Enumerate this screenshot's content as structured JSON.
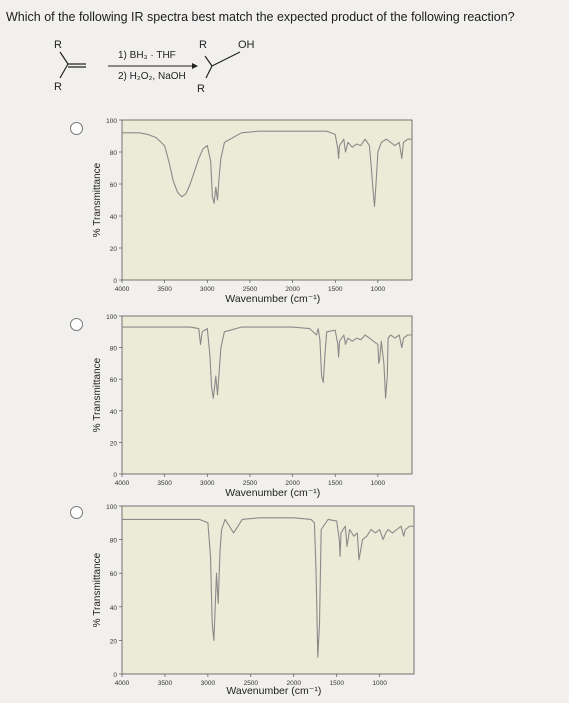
{
  "question": {
    "text": "Which of the following IR spectra best match the expected product of the following reaction?"
  },
  "reaction": {
    "reactant_labels": [
      "R",
      "R"
    ],
    "reagent_line1": "1) BH₃ · THF",
    "reagent_line2": "2) H₂O₂, NaOH",
    "product_labels": [
      "R",
      "OH",
      "R"
    ]
  },
  "options": [
    {
      "id": "A",
      "ylabel": "% Transmittance",
      "xlabel": "Wavenumber (cm⁻¹)",
      "yticks": [
        "0",
        "20",
        "40",
        "60",
        "80",
        "100"
      ],
      "xticks": [
        "4000",
        "3500",
        "3000",
        "2500",
        "2000",
        "1500",
        "1000"
      ]
    },
    {
      "id": "B",
      "ylabel": "% Transmittance",
      "xlabel": "Wavenumber (cm⁻¹)",
      "yticks": [
        "0",
        "20",
        "40",
        "60",
        "80",
        "100"
      ],
      "xticks": [
        "4000",
        "3500",
        "3000",
        "2500",
        "2000",
        "1500",
        "1000"
      ]
    },
    {
      "id": "C",
      "ylabel": "% Transmittance",
      "xlabel": "Wavenumber (cm⁻¹)",
      "yticks": [
        "0",
        "20",
        "40",
        "60",
        "80",
        "100"
      ],
      "xticks": [
        "4000",
        "3500",
        "3000",
        "2500",
        "2000",
        "1500",
        "1000"
      ]
    }
  ],
  "chart_data": [
    {
      "type": "line",
      "xlabel": "Wavenumber (cm⁻¹)",
      "ylabel": "% Transmittance",
      "xlim": [
        4000,
        600
      ],
      "ylim": [
        0,
        100
      ],
      "series": [
        {
          "x": [
            4000,
            3800,
            3700,
            3600,
            3500,
            3450,
            3400,
            3350,
            3300,
            3250,
            3200,
            3150,
            3100,
            3050,
            3000,
            2960,
            2940,
            2920,
            2900,
            2880,
            2860,
            2840,
            2800,
            2600,
            2400,
            2200,
            2000,
            1800,
            1700,
            1600,
            1500,
            1470,
            1460,
            1450,
            1400,
            1380,
            1350,
            1300,
            1250,
            1200,
            1150,
            1100,
            1080,
            1060,
            1050,
            1040,
            1020,
            1000,
            960,
            900,
            850,
            800,
            750,
            720,
            700,
            650,
            600
          ],
          "y": [
            92,
            92,
            91,
            89,
            84,
            74,
            62,
            55,
            52,
            54,
            60,
            68,
            76,
            82,
            84,
            74,
            52,
            48,
            58,
            50,
            65,
            76,
            86,
            92,
            93,
            93,
            93,
            93,
            93,
            93,
            91,
            82,
            76,
            84,
            88,
            80,
            86,
            83,
            85,
            84,
            88,
            84,
            72,
            58,
            52,
            46,
            62,
            80,
            86,
            88,
            86,
            84,
            86,
            76,
            86,
            88,
            88
          ]
        }
      ]
    },
    {
      "type": "line",
      "xlabel": "Wavenumber (cm⁻¹)",
      "ylabel": "% Transmittance",
      "xlim": [
        4000,
        600
      ],
      "ylim": [
        0,
        100
      ],
      "series": [
        {
          "x": [
            4000,
            3800,
            3600,
            3400,
            3200,
            3100,
            3080,
            3060,
            3000,
            2970,
            2950,
            2930,
            2900,
            2880,
            2860,
            2840,
            2800,
            2600,
            2400,
            2200,
            2000,
            1800,
            1720,
            1700,
            1680,
            1660,
            1640,
            1620,
            1600,
            1500,
            1470,
            1460,
            1450,
            1400,
            1380,
            1350,
            1300,
            1250,
            1200,
            1150,
            1100,
            1050,
            1000,
            990,
            980,
            960,
            930,
            910,
            890,
            880,
            850,
            800,
            750,
            720,
            700,
            650,
            600
          ],
          "y": [
            93,
            93,
            93,
            93,
            93,
            92,
            82,
            90,
            92,
            75,
            55,
            48,
            62,
            50,
            65,
            80,
            90,
            93,
            93,
            93,
            93,
            92,
            88,
            92,
            85,
            62,
            58,
            76,
            90,
            91,
            82,
            74,
            84,
            88,
            82,
            86,
            84,
            86,
            85,
            88,
            86,
            84,
            82,
            70,
            72,
            84,
            70,
            48,
            62,
            86,
            88,
            86,
            88,
            80,
            86,
            88,
            88
          ]
        }
      ]
    },
    {
      "type": "line",
      "xlabel": "Wavenumber (cm⁻¹)",
      "ylabel": "% Transmittance",
      "xlim": [
        4000,
        600
      ],
      "ylim": [
        0,
        100
      ],
      "series": [
        {
          "x": [
            4000,
            3800,
            3600,
            3400,
            3200,
            3100,
            3000,
            2970,
            2950,
            2930,
            2900,
            2880,
            2860,
            2840,
            2800,
            2700,
            2600,
            2400,
            2200,
            2000,
            1800,
            1760,
            1740,
            1720,
            1700,
            1680,
            1600,
            1500,
            1470,
            1460,
            1450,
            1400,
            1380,
            1350,
            1300,
            1260,
            1240,
            1200,
            1150,
            1100,
            1050,
            1000,
            960,
            930,
            900,
            850,
            800,
            750,
            720,
            700,
            650,
            600
          ],
          "y": [
            92,
            92,
            92,
            92,
            92,
            92,
            90,
            70,
            30,
            20,
            60,
            42,
            72,
            86,
            92,
            84,
            92,
            93,
            93,
            93,
            92,
            90,
            60,
            10,
            30,
            86,
            92,
            91,
            80,
            70,
            84,
            88,
            76,
            86,
            82,
            84,
            68,
            80,
            82,
            86,
            84,
            86,
            80,
            84,
            86,
            84,
            86,
            88,
            82,
            86,
            88,
            88
          ]
        }
      ]
    }
  ]
}
